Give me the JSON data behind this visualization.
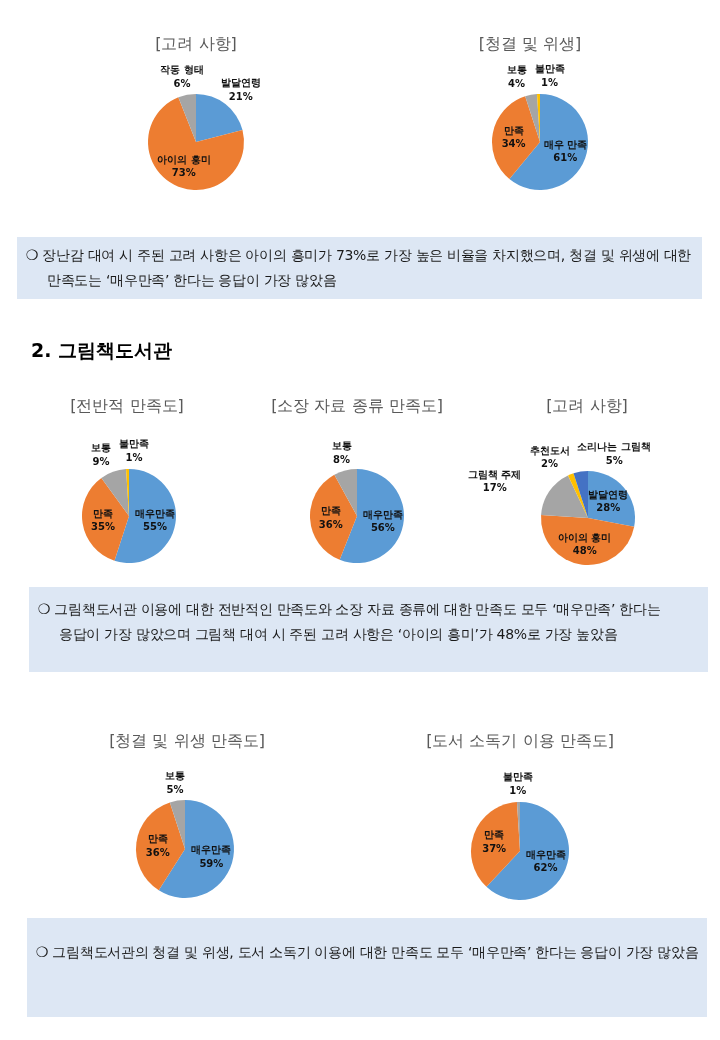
{
  "chart_data": [
    {
      "type": "pie",
      "title": "[고려 사항]",
      "categories": [
        "발달연령",
        "아이의 흥미",
        "작동 형태"
      ],
      "values": [
        21,
        73,
        6
      ],
      "colors": [
        "#5b9bd5",
        "#ed7d31",
        "#a5a5a5"
      ],
      "value_labels": [
        "21%",
        "73%",
        "6%"
      ]
    },
    {
      "type": "pie",
      "title": "[청결 및 위생]",
      "categories": [
        "매우 만족",
        "만족",
        "보통",
        "불만족"
      ],
      "values": [
        61,
        34,
        4,
        1
      ],
      "colors": [
        "#5b9bd5",
        "#ed7d31",
        "#a5a5a5",
        "#ffc000"
      ],
      "value_labels": [
        "61%",
        "34%",
        "4%",
        "1%"
      ]
    },
    {
      "type": "other",
      "annotations": [
        "❍ 장난감 대여 시 주된 고려 사항은 아이의 흥미가 73%로 가장 높은 비율을 차지했으며, 청결 및 위생에 대한 만족도는 ‘매우만족’ 한다는 응답이 가장 많았음"
      ]
    },
    {
      "type": "other",
      "title": "2. 그림책도서관"
    },
    {
      "type": "pie",
      "title": "[전반적 만족도]",
      "categories": [
        "매우만족",
        "만족",
        "보통",
        "불만족"
      ],
      "values": [
        55,
        35,
        9,
        1
      ],
      "colors": [
        "#5b9bd5",
        "#ed7d31",
        "#a5a5a5",
        "#ffc000"
      ],
      "value_labels": [
        "55%",
        "35%",
        "9%",
        "1%"
      ]
    },
    {
      "type": "pie",
      "title": "[소장 자료 종류 만족도]",
      "categories": [
        "매우만족",
        "만족",
        "보통"
      ],
      "values": [
        56,
        36,
        8
      ],
      "colors": [
        "#5b9bd5",
        "#ed7d31",
        "#a5a5a5"
      ],
      "value_labels": [
        "56%",
        "36%",
        "8%"
      ]
    },
    {
      "type": "pie",
      "title": "[고려 사항]",
      "categories": [
        "발달연령",
        "아이의 흥미",
        "그림책 주제",
        "추천도서",
        "소리나는 그림책"
      ],
      "values": [
        28,
        48,
        17,
        2,
        5
      ],
      "colors": [
        "#5b9bd5",
        "#ed7d31",
        "#a5a5a5",
        "#ffc000",
        "#4472c4"
      ],
      "value_labels": [
        "28%",
        "48%",
        "17%",
        "2%",
        "5%"
      ]
    },
    {
      "type": "other",
      "annotations": [
        "❍ 그림책도서관 이용에 대한 전반적인 만족도와 소장 자료 종류에 대한 만족도 모두 ‘매우만족’ 한다는 응답이 가장 많았으며 그림책 대여 시 주된 고려 사항은 ‘아이의 흥미’가 48%로 가장 높았음"
      ]
    },
    {
      "type": "pie",
      "title": "[청결 및 위생 만족도]",
      "categories": [
        "매우만족",
        "만족",
        "보통"
      ],
      "values": [
        59,
        36,
        5
      ],
      "colors": [
        "#5b9bd5",
        "#ed7d31",
        "#a5a5a5"
      ],
      "value_labels": [
        "59%",
        "36%",
        "5%"
      ]
    },
    {
      "type": "pie",
      "title": "[도서 소독기 이용 만족도]",
      "categories": [
        "매우만족",
        "만족",
        "불만족"
      ],
      "values": [
        62,
        37,
        1
      ],
      "colors": [
        "#5b9bd5",
        "#ed7d31",
        "#a5a5a5"
      ],
      "value_labels": [
        "62%",
        "37%",
        "1%"
      ]
    },
    {
      "type": "other",
      "annotations": [
        "❍ 그림책도서관의 청결 및 위생, 도서 소독기 이용에 대한 만족도 모두 ‘매우만족’ 한다는 응답이 가장 많았음"
      ]
    }
  ]
}
